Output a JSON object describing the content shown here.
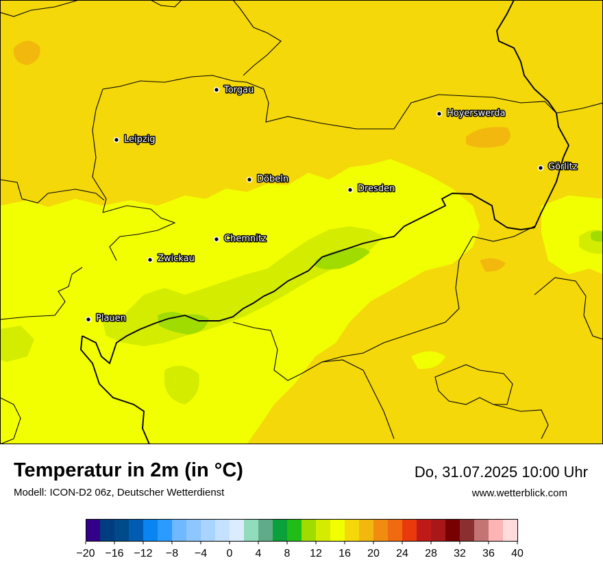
{
  "title": "Temperatur in 2m (in °C)",
  "subtitle": "Modell: ICON-D2 06z, Deutscher Wetterdienst",
  "datetime": "Do, 31.07.2025 10:00 Uhr",
  "website": "www.wetterblick.com",
  "cities": [
    {
      "name": "Torgau"
    },
    {
      "name": "Hoyerswerda"
    },
    {
      "name": "Leipzig"
    },
    {
      "name": "Görlitz"
    },
    {
      "name": "Döbeln"
    },
    {
      "name": "Dresden"
    },
    {
      "name": "Chemnitz"
    },
    {
      "name": "Zwickau"
    },
    {
      "name": "Plauen"
    }
  ],
  "legend": {
    "min": -20,
    "max": 40,
    "step": 2,
    "ticks": [
      "−20",
      "−16",
      "−12",
      "−8",
      "−4",
      "0",
      "4",
      "8",
      "12",
      "16",
      "20",
      "24",
      "28",
      "32",
      "36",
      "40"
    ],
    "colors": [
      "#330088",
      "#003c80",
      "#004a8a",
      "#005cb0",
      "#0a84f0",
      "#2a9cff",
      "#70b8ff",
      "#8ec6ff",
      "#a8d4ff",
      "#c4e2ff",
      "#dcecff",
      "#90dcbc",
      "#60ac88",
      "#0aa03a",
      "#20bc18",
      "#a0dc00",
      "#d4ec00",
      "#f2ff00",
      "#f4d80a",
      "#f2b80e",
      "#f08c10",
      "#f06a10",
      "#e83a0c",
      "#c01a18",
      "#a81818",
      "#780000",
      "#8a3030",
      "#c47474",
      "#fcb4b4",
      "#ffdcdc"
    ]
  }
}
